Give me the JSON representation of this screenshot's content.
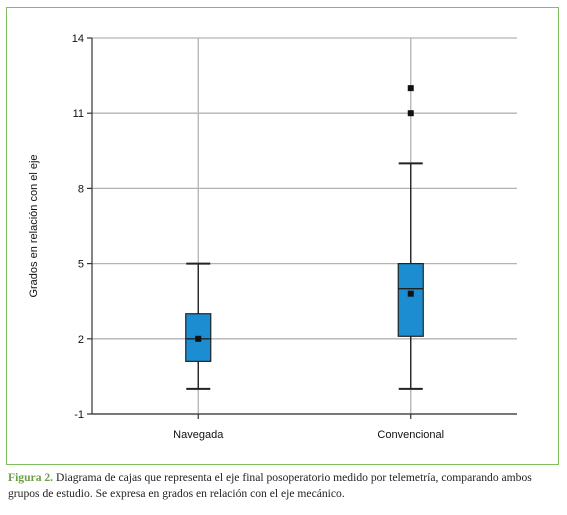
{
  "chart_data": {
    "type": "box",
    "title": "",
    "xlabel": "",
    "ylabel": "Grados en relación con el eje",
    "ylim": [
      -1,
      14
    ],
    "yticks": [
      -1,
      2,
      5,
      8,
      11,
      14
    ],
    "grid": true,
    "categories": [
      "Navegada",
      "Convencional"
    ],
    "boxes": [
      {
        "category": "Navegada",
        "whisker_low": 0,
        "q1": 1.1,
        "median": 2.0,
        "q3": 3.0,
        "whisker_high": 5.0,
        "mean": 2.0,
        "outliers": []
      },
      {
        "category": "Convencional",
        "whisker_low": 0,
        "q1": 2.1,
        "median": 4.0,
        "q3": 5.0,
        "whisker_high": 9.0,
        "mean": 3.8,
        "outliers": [
          11,
          12
        ]
      }
    ],
    "colors": {
      "box_fill": "#1b8dd0",
      "grid": "#b3b3b3",
      "frame": "#7fbf5f",
      "caption_label": "#6b9e45"
    }
  },
  "caption": {
    "label": "Figura 2.",
    "text": " Diagrama de cajas que representa el eje final posoperatorio medido por telemetría, comparando ambos grupos de estudio. Se expresa en grados en relación con el eje mecánico."
  }
}
